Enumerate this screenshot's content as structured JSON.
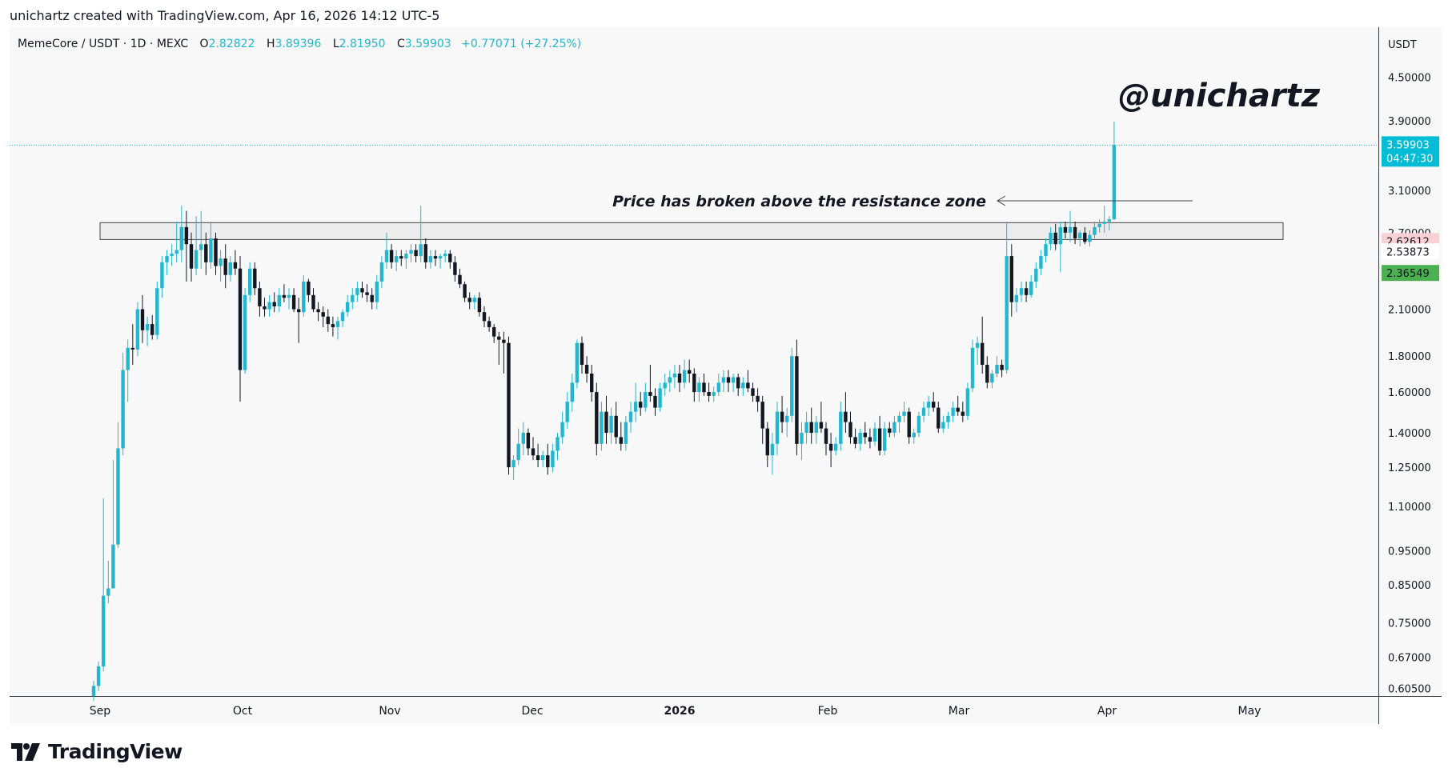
{
  "header": {
    "attribution": "unichartz created with TradingView.com, Apr 16, 2026 14:12 UTC-5"
  },
  "legend": {
    "symbol": "MemeCore / USDT · 1D · MEXC",
    "o_label": "O",
    "o_value": "2.82822",
    "h_label": "H",
    "h_value": "3.89396",
    "l_label": "L",
    "l_value": "2.81950",
    "c_label": "C",
    "c_value": "3.59903",
    "change": "+0.77071 (+27.25%)"
  },
  "watermark": "@unichartz",
  "annotation": "Price has broken above the resistance zone",
  "price_axis": {
    "currency": "USDT",
    "ticks": [
      "4.50000",
      "3.90000",
      "3.10000",
      "2.70000",
      "2.10000",
      "1.80000",
      "1.60000",
      "1.40000",
      "1.25000",
      "1.10000",
      "0.95000",
      "0.85000",
      "0.75000",
      "0.67000",
      "0.60500"
    ],
    "labels": [
      {
        "text": "3.59903",
        "sub": "04:47:30",
        "bg": "#00bcd4",
        "fg": "#ffffff",
        "value": 3.59903
      },
      {
        "text": "2.62612",
        "bg": "#f9d0d3",
        "fg": "#131722",
        "value": 2.62612
      },
      {
        "text": "2.53873",
        "bg": "#ffffff",
        "fg": "#131722",
        "value": 2.53873
      },
      {
        "text": "2.36549",
        "bg": "#4caf50",
        "fg": "#131722",
        "value": 2.36549
      }
    ]
  },
  "time_axis": {
    "labels": [
      {
        "text": "Sep",
        "bold": false
      },
      {
        "text": "Oct",
        "bold": false
      },
      {
        "text": "Nov",
        "bold": false
      },
      {
        "text": "Dec",
        "bold": false
      },
      {
        "text": "2026",
        "bold": true
      },
      {
        "text": "Feb",
        "bold": false
      },
      {
        "text": "Mar",
        "bold": false
      },
      {
        "text": "Apr",
        "bold": false
      },
      {
        "text": "May",
        "bold": false
      }
    ]
  },
  "colors": {
    "up": "#22b7cf",
    "down": "#131722",
    "background": "#f8f8f8",
    "accent": "#00bcd4",
    "text": "#131722",
    "zone_fill": "#ececec",
    "zone_stroke": "#444444"
  },
  "chart_data": {
    "type": "candlestick",
    "scale": "log",
    "ylim": [
      0.59,
      5.3
    ],
    "resistance_zone": [
      2.64,
      2.79
    ],
    "last_price": 3.59903,
    "candles": [
      [
        0.59,
        0.62,
        0.58,
        0.61
      ],
      [
        0.61,
        0.66,
        0.6,
        0.65
      ],
      [
        0.65,
        1.13,
        0.64,
        0.82
      ],
      [
        0.82,
        0.92,
        0.8,
        0.84
      ],
      [
        0.84,
        1.28,
        0.84,
        0.97
      ],
      [
        0.97,
        1.45,
        0.96,
        1.33
      ],
      [
        1.33,
        1.82,
        1.3,
        1.72
      ],
      [
        1.72,
        1.9,
        1.55,
        1.85
      ],
      [
        1.85,
        2.0,
        1.75,
        1.84
      ],
      [
        1.84,
        2.15,
        1.8,
        2.1
      ],
      [
        2.1,
        2.2,
        1.88,
        1.96
      ],
      [
        1.96,
        2.05,
        1.86,
        2.0
      ],
      [
        2.0,
        2.06,
        1.9,
        1.93
      ],
      [
        1.93,
        2.3,
        1.9,
        2.25
      ],
      [
        2.25,
        2.5,
        2.18,
        2.45
      ],
      [
        2.45,
        2.55,
        2.35,
        2.5
      ],
      [
        2.5,
        2.6,
        2.42,
        2.52
      ],
      [
        2.52,
        2.8,
        2.45,
        2.55
      ],
      [
        2.55,
        2.95,
        2.45,
        2.75
      ],
      [
        2.75,
        2.9,
        2.3,
        2.6
      ],
      [
        2.6,
        2.7,
        2.3,
        2.4
      ],
      [
        2.4,
        2.85,
        2.35,
        2.55
      ],
      [
        2.55,
        2.9,
        2.4,
        2.6
      ],
      [
        2.6,
        2.7,
        2.35,
        2.45
      ],
      [
        2.45,
        2.8,
        2.4,
        2.65
      ],
      [
        2.65,
        2.7,
        2.35,
        2.42
      ],
      [
        2.42,
        2.55,
        2.3,
        2.48
      ],
      [
        2.48,
        2.6,
        2.25,
        2.35
      ],
      [
        2.35,
        2.5,
        2.3,
        2.45
      ],
      [
        2.45,
        2.55,
        2.35,
        2.4
      ],
      [
        2.4,
        2.5,
        1.55,
        1.72
      ],
      [
        1.72,
        2.25,
        1.7,
        2.2
      ],
      [
        2.2,
        2.45,
        2.15,
        2.4
      ],
      [
        2.4,
        2.45,
        2.2,
        2.25
      ],
      [
        2.25,
        2.3,
        2.05,
        2.12
      ],
      [
        2.12,
        2.18,
        2.05,
        2.1
      ],
      [
        2.1,
        2.2,
        2.05,
        2.15
      ],
      [
        2.15,
        2.22,
        2.08,
        2.12
      ],
      [
        2.12,
        2.25,
        2.08,
        2.2
      ],
      [
        2.2,
        2.28,
        2.15,
        2.18
      ],
      [
        2.18,
        2.25,
        2.1,
        2.2
      ],
      [
        2.2,
        2.25,
        2.08,
        2.1
      ],
      [
        2.1,
        2.18,
        1.88,
        2.08
      ],
      [
        2.08,
        2.35,
        2.05,
        2.3
      ],
      [
        2.3,
        2.32,
        2.15,
        2.2
      ],
      [
        2.2,
        2.25,
        2.08,
        2.1
      ],
      [
        2.1,
        2.15,
        2.02,
        2.08
      ],
      [
        2.08,
        2.12,
        1.98,
        2.05
      ],
      [
        2.05,
        2.1,
        1.95,
        2.0
      ],
      [
        2.0,
        2.05,
        1.92,
        1.98
      ],
      [
        1.98,
        2.05,
        1.9,
        2.02
      ],
      [
        2.02,
        2.1,
        1.98,
        2.08
      ],
      [
        2.08,
        2.2,
        2.05,
        2.15
      ],
      [
        2.15,
        2.25,
        2.1,
        2.2
      ],
      [
        2.2,
        2.3,
        2.15,
        2.25
      ],
      [
        2.25,
        2.3,
        2.18,
        2.22
      ],
      [
        2.22,
        2.28,
        2.15,
        2.2
      ],
      [
        2.2,
        2.25,
        2.1,
        2.15
      ],
      [
        2.15,
        2.35,
        2.1,
        2.3
      ],
      [
        2.3,
        2.5,
        2.25,
        2.45
      ],
      [
        2.45,
        2.7,
        2.4,
        2.55
      ],
      [
        2.55,
        2.6,
        2.4,
        2.45
      ],
      [
        2.45,
        2.55,
        2.38,
        2.5
      ],
      [
        2.5,
        2.55,
        2.42,
        2.48
      ],
      [
        2.48,
        2.55,
        2.4,
        2.52
      ],
      [
        2.52,
        2.6,
        2.45,
        2.55
      ],
      [
        2.55,
        2.6,
        2.45,
        2.5
      ],
      [
        2.5,
        2.95,
        2.45,
        2.6
      ],
      [
        2.6,
        2.65,
        2.4,
        2.45
      ],
      [
        2.45,
        2.55,
        2.4,
        2.5
      ],
      [
        2.5,
        2.55,
        2.42,
        2.48
      ],
      [
        2.48,
        2.52,
        2.4,
        2.5
      ],
      [
        2.5,
        2.55,
        2.45,
        2.52
      ],
      [
        2.52,
        2.55,
        2.4,
        2.45
      ],
      [
        2.45,
        2.5,
        2.3,
        2.35
      ],
      [
        2.35,
        2.4,
        2.25,
        2.28
      ],
      [
        2.28,
        2.3,
        2.15,
        2.18
      ],
      [
        2.18,
        2.22,
        2.1,
        2.15
      ],
      [
        2.15,
        2.2,
        2.1,
        2.18
      ],
      [
        2.18,
        2.22,
        2.05,
        2.08
      ],
      [
        2.08,
        2.12,
        1.98,
        2.02
      ],
      [
        2.02,
        2.05,
        1.95,
        1.98
      ],
      [
        1.98,
        2.0,
        1.88,
        1.92
      ],
      [
        1.92,
        1.95,
        1.75,
        1.9
      ],
      [
        1.9,
        1.95,
        1.7,
        1.88
      ],
      [
        1.88,
        1.92,
        1.22,
        1.25
      ],
      [
        1.25,
        1.3,
        1.2,
        1.28
      ],
      [
        1.28,
        1.42,
        1.26,
        1.35
      ],
      [
        1.35,
        1.45,
        1.3,
        1.4
      ],
      [
        1.4,
        1.42,
        1.3,
        1.33
      ],
      [
        1.33,
        1.38,
        1.28,
        1.3
      ],
      [
        1.3,
        1.35,
        1.25,
        1.28
      ],
      [
        1.28,
        1.32,
        1.25,
        1.3
      ],
      [
        1.3,
        1.35,
        1.22,
        1.25
      ],
      [
        1.25,
        1.35,
        1.23,
        1.32
      ],
      [
        1.32,
        1.4,
        1.28,
        1.38
      ],
      [
        1.38,
        1.5,
        1.35,
        1.45
      ],
      [
        1.45,
        1.6,
        1.42,
        1.55
      ],
      [
        1.55,
        1.7,
        1.5,
        1.65
      ],
      [
        1.65,
        1.9,
        1.62,
        1.88
      ],
      [
        1.88,
        1.92,
        1.7,
        1.75
      ],
      [
        1.75,
        1.8,
        1.65,
        1.7
      ],
      [
        1.7,
        1.75,
        1.55,
        1.6
      ],
      [
        1.6,
        1.65,
        1.3,
        1.35
      ],
      [
        1.35,
        1.55,
        1.32,
        1.5
      ],
      [
        1.5,
        1.58,
        1.35,
        1.4
      ],
      [
        1.4,
        1.52,
        1.35,
        1.48
      ],
      [
        1.48,
        1.55,
        1.35,
        1.38
      ],
      [
        1.38,
        1.45,
        1.32,
        1.35
      ],
      [
        1.35,
        1.48,
        1.32,
        1.45
      ],
      [
        1.45,
        1.55,
        1.4,
        1.5
      ],
      [
        1.5,
        1.65,
        1.45,
        1.55
      ],
      [
        1.55,
        1.6,
        1.48,
        1.52
      ],
      [
        1.52,
        1.65,
        1.5,
        1.6
      ],
      [
        1.6,
        1.75,
        1.55,
        1.58
      ],
      [
        1.58,
        1.62,
        1.48,
        1.52
      ],
      [
        1.52,
        1.65,
        1.5,
        1.62
      ],
      [
        1.62,
        1.7,
        1.58,
        1.65
      ],
      [
        1.65,
        1.72,
        1.6,
        1.68
      ],
      [
        1.68,
        1.75,
        1.62,
        1.7
      ],
      [
        1.7,
        1.75,
        1.6,
        1.65
      ],
      [
        1.65,
        1.78,
        1.62,
        1.72
      ],
      [
        1.72,
        1.78,
        1.65,
        1.7
      ],
      [
        1.7,
        1.73,
        1.55,
        1.6
      ],
      [
        1.6,
        1.68,
        1.55,
        1.65
      ],
      [
        1.65,
        1.7,
        1.58,
        1.6
      ],
      [
        1.6,
        1.65,
        1.55,
        1.58
      ],
      [
        1.58,
        1.63,
        1.55,
        1.6
      ],
      [
        1.6,
        1.7,
        1.58,
        1.65
      ],
      [
        1.65,
        1.72,
        1.6,
        1.68
      ],
      [
        1.68,
        1.72,
        1.6,
        1.65
      ],
      [
        1.65,
        1.7,
        1.6,
        1.68
      ],
      [
        1.68,
        1.7,
        1.58,
        1.62
      ],
      [
        1.62,
        1.68,
        1.58,
        1.65
      ],
      [
        1.65,
        1.72,
        1.6,
        1.62
      ],
      [
        1.62,
        1.65,
        1.55,
        1.58
      ],
      [
        1.58,
        1.62,
        1.5,
        1.55
      ],
      [
        1.55,
        1.58,
        1.35,
        1.42
      ],
      [
        1.42,
        1.45,
        1.25,
        1.3
      ],
      [
        1.3,
        1.4,
        1.22,
        1.35
      ],
      [
        1.35,
        1.55,
        1.3,
        1.5
      ],
      [
        1.5,
        1.58,
        1.4,
        1.45
      ],
      [
        1.45,
        1.52,
        1.38,
        1.48
      ],
      [
        1.48,
        1.85,
        1.45,
        1.8
      ],
      [
        1.8,
        1.9,
        1.3,
        1.35
      ],
      [
        1.35,
        1.45,
        1.28,
        1.4
      ],
      [
        1.4,
        1.5,
        1.35,
        1.45
      ],
      [
        1.45,
        1.52,
        1.35,
        1.4
      ],
      [
        1.4,
        1.48,
        1.35,
        1.45
      ],
      [
        1.45,
        1.55,
        1.4,
        1.42
      ],
      [
        1.42,
        1.45,
        1.3,
        1.35
      ],
      [
        1.35,
        1.4,
        1.25,
        1.32
      ],
      [
        1.32,
        1.38,
        1.3,
        1.35
      ],
      [
        1.35,
        1.55,
        1.32,
        1.5
      ],
      [
        1.5,
        1.6,
        1.4,
        1.45
      ],
      [
        1.45,
        1.5,
        1.35,
        1.38
      ],
      [
        1.38,
        1.42,
        1.33,
        1.35
      ],
      [
        1.35,
        1.42,
        1.32,
        1.4
      ],
      [
        1.4,
        1.45,
        1.35,
        1.38
      ],
      [
        1.38,
        1.42,
        1.33,
        1.36
      ],
      [
        1.36,
        1.45,
        1.34,
        1.42
      ],
      [
        1.42,
        1.48,
        1.3,
        1.32
      ],
      [
        1.32,
        1.45,
        1.3,
        1.42
      ],
      [
        1.42,
        1.45,
        1.38,
        1.4
      ],
      [
        1.4,
        1.48,
        1.38,
        1.45
      ],
      [
        1.45,
        1.5,
        1.4,
        1.48
      ],
      [
        1.48,
        1.55,
        1.45,
        1.5
      ],
      [
        1.5,
        1.52,
        1.35,
        1.38
      ],
      [
        1.38,
        1.42,
        1.35,
        1.4
      ],
      [
        1.4,
        1.5,
        1.38,
        1.48
      ],
      [
        1.48,
        1.55,
        1.45,
        1.52
      ],
      [
        1.52,
        1.58,
        1.48,
        1.55
      ],
      [
        1.55,
        1.6,
        1.5,
        1.52
      ],
      [
        1.52,
        1.55,
        1.4,
        1.42
      ],
      [
        1.42,
        1.48,
        1.4,
        1.45
      ],
      [
        1.45,
        1.5,
        1.42,
        1.48
      ],
      [
        1.48,
        1.55,
        1.45,
        1.52
      ],
      [
        1.52,
        1.58,
        1.48,
        1.5
      ],
      [
        1.5,
        1.55,
        1.45,
        1.48
      ],
      [
        1.48,
        1.65,
        1.46,
        1.62
      ],
      [
        1.62,
        1.9,
        1.6,
        1.85
      ],
      [
        1.85,
        1.92,
        1.75,
        1.88
      ],
      [
        1.88,
        2.05,
        1.7,
        1.75
      ],
      [
        1.75,
        1.8,
        1.62,
        1.65
      ],
      [
        1.65,
        1.72,
        1.62,
        1.7
      ],
      [
        1.7,
        1.8,
        1.68,
        1.75
      ],
      [
        1.75,
        1.78,
        1.68,
        1.72
      ],
      [
        1.72,
        2.8,
        1.7,
        2.5
      ],
      [
        2.5,
        2.6,
        2.05,
        2.15
      ],
      [
        2.15,
        2.25,
        2.08,
        2.2
      ],
      [
        2.2,
        2.3,
        2.15,
        2.25
      ],
      [
        2.25,
        2.3,
        2.15,
        2.2
      ],
      [
        2.2,
        2.35,
        2.18,
        2.3
      ],
      [
        2.3,
        2.45,
        2.25,
        2.4
      ],
      [
        2.4,
        2.55,
        2.35,
        2.5
      ],
      [
        2.5,
        2.65,
        2.45,
        2.6
      ],
      [
        2.6,
        2.75,
        2.55,
        2.7
      ],
      [
        2.7,
        2.78,
        2.55,
        2.6
      ],
      [
        2.6,
        2.8,
        2.37,
        2.75
      ],
      [
        2.75,
        2.8,
        2.65,
        2.7
      ],
      [
        2.7,
        2.9,
        2.62,
        2.75
      ],
      [
        2.75,
        2.8,
        2.6,
        2.65
      ],
      [
        2.65,
        2.72,
        2.58,
        2.7
      ],
      [
        2.7,
        2.75,
        2.6,
        2.62
      ],
      [
        2.62,
        2.72,
        2.58,
        2.68
      ],
      [
        2.68,
        2.8,
        2.65,
        2.75
      ],
      [
        2.75,
        2.82,
        2.7,
        2.78
      ],
      [
        2.78,
        2.95,
        2.7,
        2.8
      ],
      [
        2.8,
        2.85,
        2.72,
        2.82
      ],
      [
        2.82,
        3.89,
        2.82,
        3.59903
      ]
    ]
  }
}
